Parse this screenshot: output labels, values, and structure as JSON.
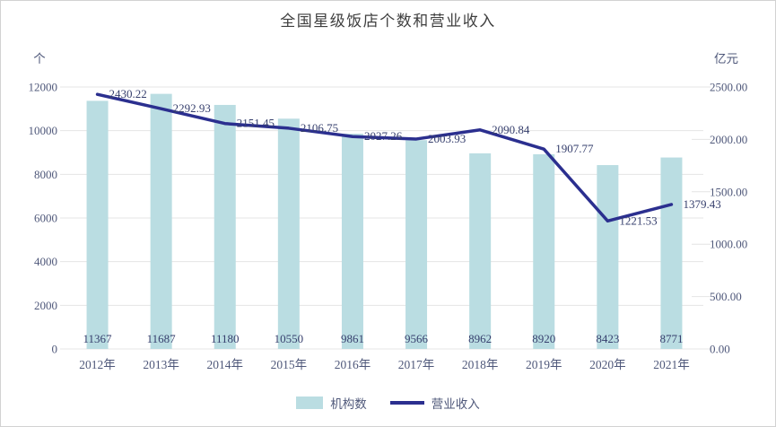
{
  "title": "全国星级饭店个数和营业收入",
  "colors": {
    "background": "#ffffff",
    "border": "#d2d2d2",
    "bar": "#badde2",
    "line": "#2b2f8f",
    "grid": "#e4e4e4",
    "axis_text": "#4f587a",
    "data_label_text": "#363f6d",
    "title_text": "#3f3f3f"
  },
  "chart_data": {
    "type": "bar",
    "subtype": "bar+line combo, dual y-axis",
    "title": "全国星级饭店个数和营业收入",
    "categories": [
      "2012年",
      "2013年",
      "2014年",
      "2015年",
      "2016年",
      "2017年",
      "2018年",
      "2019年",
      "2020年",
      "2021年"
    ],
    "series": [
      {
        "name": "机构数",
        "type": "bar",
        "axis": "left",
        "color": "#badde2",
        "values": [
          11367,
          11687,
          11180,
          10550,
          9861,
          9566,
          8962,
          8920,
          8423,
          8771
        ]
      },
      {
        "name": "营业收入",
        "type": "line",
        "axis": "right",
        "color": "#2b2f8f",
        "values": [
          2430.22,
          2292.93,
          2151.45,
          2106.75,
          2027.26,
          2003.93,
          2090.84,
          1907.77,
          1221.53,
          1379.43
        ]
      }
    ],
    "left_axis": {
      "unit": "个",
      "min": 0,
      "max": 12000,
      "ticks": [
        0,
        2000,
        4000,
        6000,
        8000,
        10000,
        12000
      ]
    },
    "right_axis": {
      "unit": "亿元",
      "min": 0,
      "max": 2500,
      "ticks": [
        "0.00",
        "500.00",
        "1000.00",
        "1500.00",
        "2000.00",
        "2500.00"
      ]
    },
    "grid": "horizontal gridlines at left-axis ticks",
    "legend_position": "bottom-center",
    "data_labels": {
      "bar": "integer, at bar bottom",
      "line": "two decimals, right of point"
    }
  },
  "legend": {
    "items": [
      {
        "label": "机构数",
        "swatch": "bar",
        "color": "#badde2"
      },
      {
        "label": "营业收入",
        "swatch": "line",
        "color": "#2b2f8f"
      }
    ]
  }
}
